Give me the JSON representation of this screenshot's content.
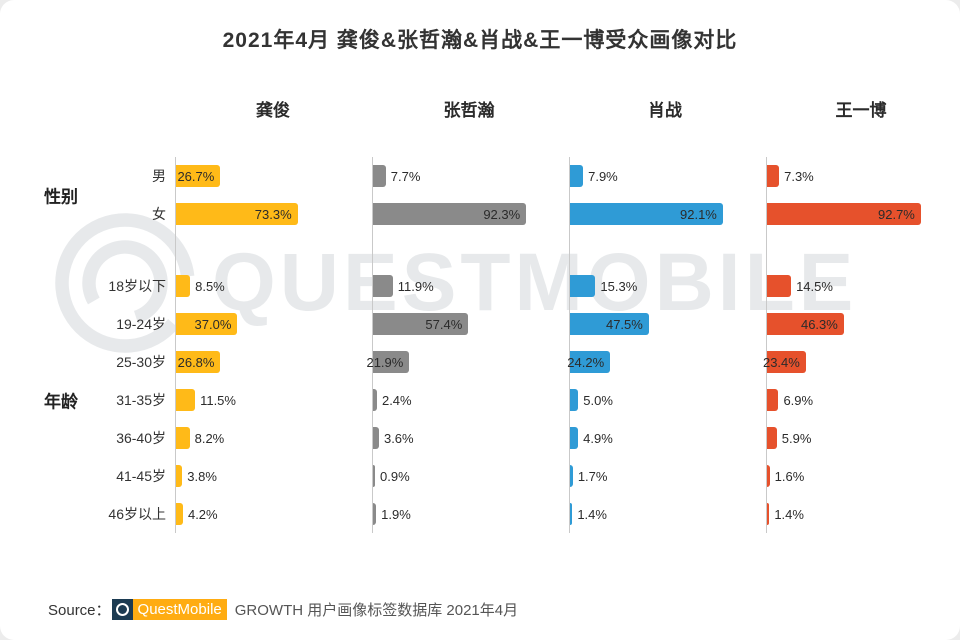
{
  "title": "2021年4月 龚俊&张哲瀚&肖战&王一博受众画像对比",
  "watermark": "QUESTMOBILE",
  "source": {
    "prefix": "Source：",
    "brand": "QuestMobile",
    "rest": "GROWTH 用户画像标签数据库 2021年4月"
  },
  "chart_data": {
    "type": "bar",
    "orientation": "horizontal",
    "value_format": "percent_one_decimal",
    "xlim": [
      0,
      100
    ],
    "inside_label_min": 20,
    "groups": [
      {
        "label": "性别",
        "key": "gender",
        "categories": [
          "男",
          "女"
        ]
      },
      {
        "label": "年龄",
        "key": "age",
        "categories": [
          "18岁以下",
          "19-24岁",
          "25-30岁",
          "31-35岁",
          "36-40岁",
          "41-45岁",
          "46岁以上"
        ]
      }
    ],
    "series": [
      {
        "name": "龚俊",
        "color": "#ffba18",
        "values": {
          "gender": [
            26.7,
            73.3
          ],
          "age": [
            8.5,
            37.0,
            26.8,
            11.5,
            8.2,
            3.8,
            4.2
          ]
        }
      },
      {
        "name": "张哲瀚",
        "color": "#8a8a8a",
        "values": {
          "gender": [
            7.7,
            92.3
          ],
          "age": [
            11.9,
            57.4,
            21.9,
            2.4,
            3.6,
            0.9,
            1.9
          ]
        }
      },
      {
        "name": "肖战",
        "color": "#2f9bd6",
        "values": {
          "gender": [
            7.9,
            92.1
          ],
          "age": [
            15.3,
            47.5,
            24.2,
            5.0,
            4.9,
            1.7,
            1.4
          ]
        }
      },
      {
        "name": "王一博",
        "color": "#e6512c",
        "values": {
          "gender": [
            7.3,
            92.7
          ],
          "age": [
            14.5,
            46.3,
            23.4,
            6.9,
            5.9,
            1.6,
            1.4
          ]
        }
      }
    ]
  }
}
